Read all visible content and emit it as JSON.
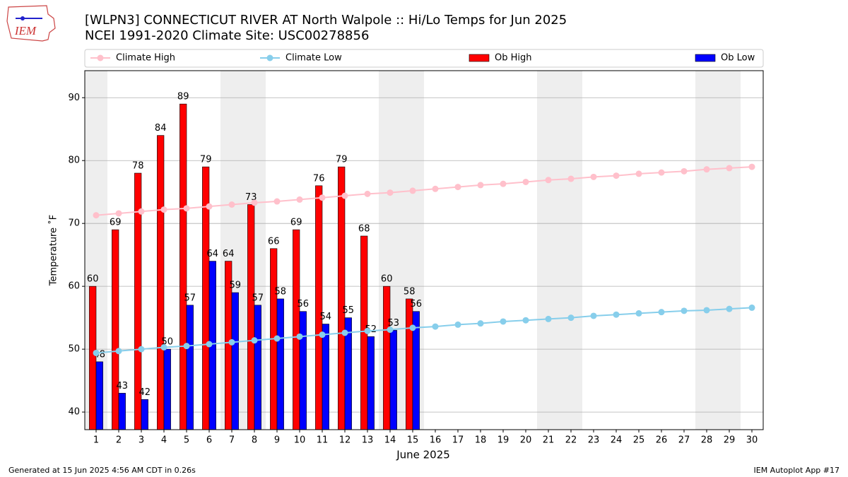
{
  "chart_data": {
    "type": "bar_line",
    "title": "[WLPN3] CONNECTICUT RIVER  AT North Walpole :: Hi/Lo Temps for Jun 2025",
    "subtitle": "NCEI 1991-2020 Climate Site: USC00278856",
    "xlabel": "June 2025",
    "ylabel": "Temperature ˚F",
    "logo_text": "IEM",
    "footer_left": "Generated at 15 Jun 2025 4:56 AM CDT in 0.26s",
    "footer_right": "IEM Autoplot App #17",
    "x": [
      1,
      2,
      3,
      4,
      5,
      6,
      7,
      8,
      9,
      10,
      11,
      12,
      13,
      14,
      15,
      16,
      17,
      18,
      19,
      20,
      21,
      22,
      23,
      24,
      25,
      26,
      27,
      28,
      29,
      30
    ],
    "xlim": [
      0.5,
      30.5
    ],
    "xticks": [
      1,
      2,
      3,
      4,
      5,
      6,
      7,
      8,
      9,
      10,
      11,
      12,
      13,
      14,
      15,
      16,
      17,
      18,
      19,
      20,
      21,
      22,
      23,
      24,
      25,
      26,
      27,
      28,
      29,
      30
    ],
    "ylim": [
      37.2,
      94.3
    ],
    "yticks": [
      40,
      50,
      60,
      70,
      80,
      90
    ],
    "grid": true,
    "legend": "top",
    "shaded_days": [
      1,
      7,
      8,
      14,
      15,
      21,
      22,
      28,
      29
    ],
    "shade_color": "#eeeeee",
    "series": [
      {
        "name": "Climate High",
        "kind": "line",
        "color": "#ffc0cb",
        "values": [
          71.3,
          71.6,
          71.9,
          72.2,
          72.4,
          72.7,
          73.0,
          73.3,
          73.5,
          73.8,
          74.1,
          74.4,
          74.7,
          74.9,
          75.2,
          75.5,
          75.8,
          76.1,
          76.3,
          76.6,
          76.9,
          77.1,
          77.4,
          77.6,
          77.9,
          78.1,
          78.3,
          78.6,
          78.8,
          79.0
        ]
      },
      {
        "name": "Climate Low",
        "kind": "line",
        "color": "#87ceeb",
        "values": [
          49.4,
          49.7,
          50.0,
          50.3,
          50.5,
          50.8,
          51.1,
          51.4,
          51.7,
          52.0,
          52.3,
          52.6,
          52.9,
          53.1,
          53.4,
          53.6,
          53.9,
          54.1,
          54.4,
          54.6,
          54.8,
          55.0,
          55.3,
          55.5,
          55.7,
          55.9,
          56.1,
          56.2,
          56.4,
          56.6
        ]
      },
      {
        "name": "Ob High",
        "kind": "bar",
        "color": "#ff0000",
        "values": [
          60,
          69,
          78,
          84,
          89,
          79,
          64,
          73,
          66,
          69,
          76,
          79,
          68,
          60,
          58,
          null,
          null,
          null,
          null,
          null,
          null,
          null,
          null,
          null,
          null,
          null,
          null,
          null,
          null,
          null
        ]
      },
      {
        "name": "Ob Low",
        "kind": "bar",
        "color": "#0000ff",
        "values": [
          48,
          43,
          42,
          50,
          57,
          64,
          59,
          57,
          58,
          56,
          54,
          55,
          52,
          53,
          56,
          null,
          null,
          null,
          null,
          null,
          null,
          null,
          null,
          null,
          null,
          null,
          null,
          null,
          null,
          null
        ]
      }
    ]
  }
}
